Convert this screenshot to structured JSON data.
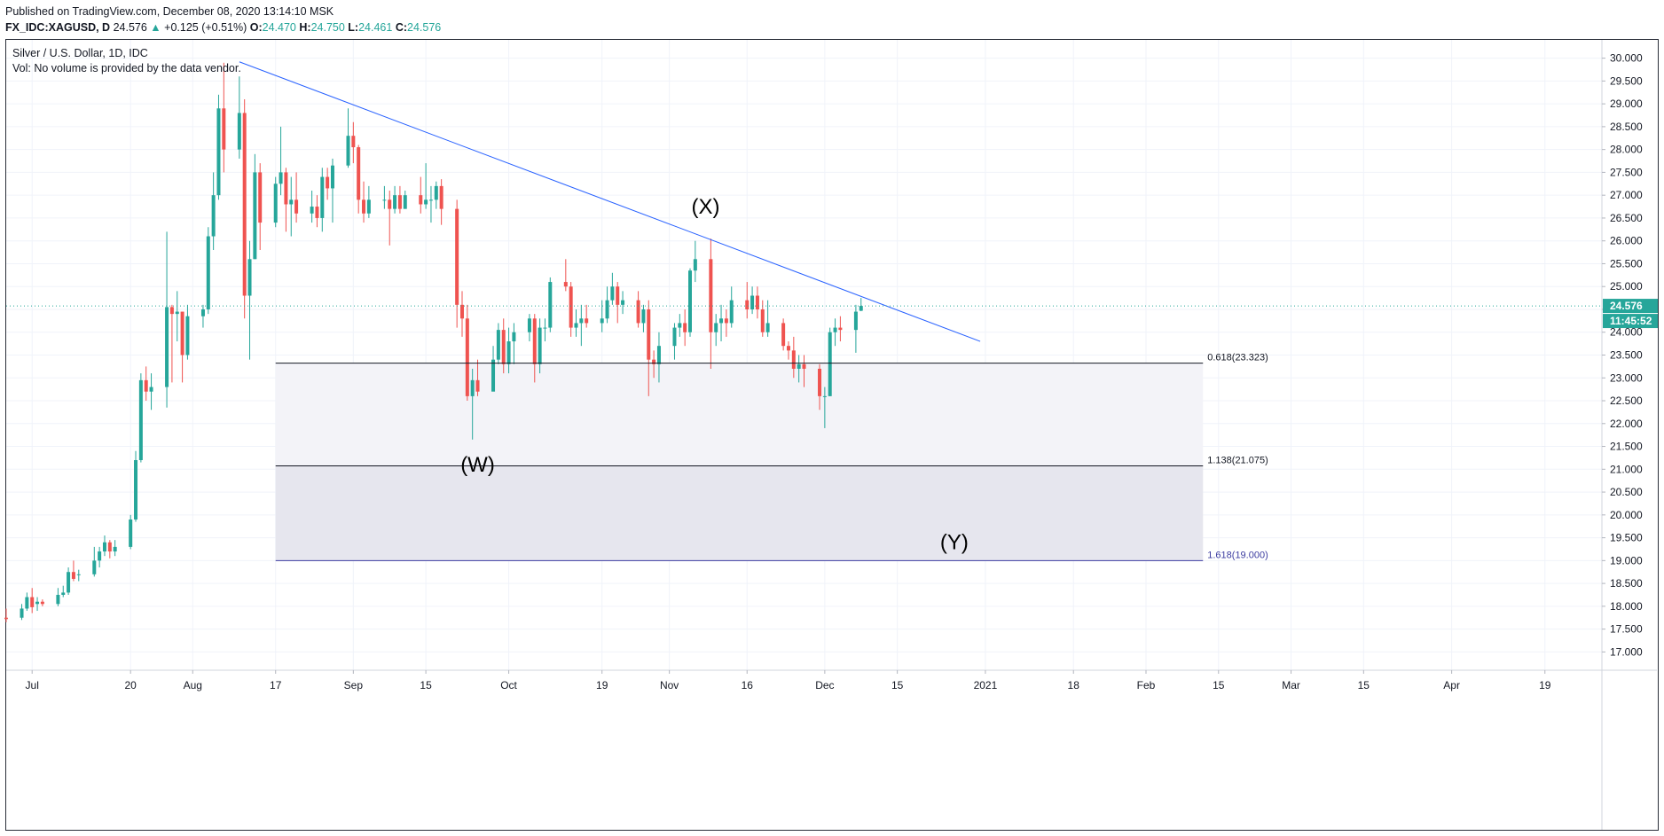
{
  "header": {
    "published": "Published on TradingView.com, December 08, 2020 13:14:10 MSK",
    "symbol": "FX_IDC:XAGUSD, D",
    "last": "24.576",
    "change": "+0.125 (+0.51%)",
    "o_label": "O:",
    "o_value": "24.470",
    "h_label": "H:",
    "h_value": "24.750",
    "l_label": "L:",
    "l_value": "24.461",
    "c_label": "C:",
    "c_value": "24.576"
  },
  "legend": {
    "title": "Silver / U.S. Dollar, 1D, IDC",
    "volume": "Vol: No volume is provided by the data vendor."
  },
  "colors": {
    "up": "#26a69a",
    "down": "#ef5350",
    "trendline": "#2962ff",
    "fib_line": "#131722",
    "fib_target": "#3c3ca0",
    "zone_light": "#f3f3f8",
    "zone_dark": "#e6e6ee",
    "price_badge": "#26a69a"
  },
  "chart_data": {
    "type": "candlestick",
    "ylim": [
      16.6,
      30.4
    ],
    "y_ticks": [
      "17.000",
      "17.500",
      "18.000",
      "18.500",
      "19.000",
      "19.500",
      "20.000",
      "20.500",
      "21.000",
      "21.500",
      "22.000",
      "22.500",
      "23.000",
      "23.500",
      "24.000",
      "24.500",
      "25.000",
      "25.500",
      "26.000",
      "26.500",
      "27.000",
      "27.500",
      "28.000",
      "28.500",
      "29.000",
      "29.500",
      "30.000"
    ],
    "x_ticks": [
      {
        "label": "Jul",
        "date": "2020-07-01"
      },
      {
        "label": "20",
        "date": "2020-07-20"
      },
      {
        "label": "Aug",
        "date": "2020-08-01"
      },
      {
        "label": "17",
        "date": "2020-08-17"
      },
      {
        "label": "Sep",
        "date": "2020-09-01"
      },
      {
        "label": "15",
        "date": "2020-09-15"
      },
      {
        "label": "Oct",
        "date": "2020-10-01"
      },
      {
        "label": "19",
        "date": "2020-10-19"
      },
      {
        "label": "Nov",
        "date": "2020-11-01"
      },
      {
        "label": "16",
        "date": "2020-11-16"
      },
      {
        "label": "Dec",
        "date": "2020-12-01"
      },
      {
        "label": "15",
        "date": "2020-12-15"
      },
      {
        "label": "2021",
        "date": "2021-01-01"
      },
      {
        "label": "18",
        "date": "2021-01-18"
      },
      {
        "label": "Feb",
        "date": "2021-02-01"
      },
      {
        "label": "15",
        "date": "2021-02-15"
      },
      {
        "label": "Mar",
        "date": "2021-03-01"
      },
      {
        "label": "15",
        "date": "2021-03-15"
      },
      {
        "label": "Apr",
        "date": "2021-04-01"
      },
      {
        "label": "19",
        "date": "2021-04-19"
      }
    ],
    "x_range": [
      "2020-06-26",
      "2021-04-30"
    ],
    "candles": [
      [
        "2020-06-26",
        17.75,
        17.72,
        17.95,
        17.65
      ],
      [
        "2020-06-29",
        17.75,
        17.95,
        18.05,
        17.7
      ],
      [
        "2020-06-30",
        17.95,
        18.2,
        18.3,
        17.9
      ],
      [
        "2020-07-01",
        18.2,
        17.98,
        18.4,
        17.85
      ],
      [
        "2020-07-02",
        18.05,
        18.1,
        18.2,
        17.9
      ],
      [
        "2020-07-03",
        18.1,
        18.05,
        18.15,
        18.0
      ],
      [
        "2020-07-06",
        18.05,
        18.25,
        18.4,
        18.0
      ],
      [
        "2020-07-07",
        18.25,
        18.3,
        18.45,
        18.2
      ],
      [
        "2020-07-08",
        18.3,
        18.75,
        18.85,
        18.25
      ],
      [
        "2020-07-09",
        18.75,
        18.6,
        19.0,
        18.55
      ],
      [
        "2020-07-10",
        18.7,
        18.7,
        18.8,
        18.55
      ],
      [
        "2020-07-13",
        18.7,
        19.0,
        19.3,
        18.65
      ],
      [
        "2020-07-14",
        19.0,
        19.2,
        19.3,
        18.85
      ],
      [
        "2020-07-15",
        19.2,
        19.4,
        19.55,
        19.1
      ],
      [
        "2020-07-16",
        19.4,
        19.2,
        19.45,
        19.05
      ],
      [
        "2020-07-17",
        19.2,
        19.3,
        19.45,
        19.1
      ],
      [
        "2020-07-20",
        19.3,
        19.9,
        20.0,
        19.25
      ],
      [
        "2020-07-21",
        19.9,
        21.2,
        21.4,
        19.85
      ],
      [
        "2020-07-22",
        21.2,
        22.95,
        23.1,
        21.15
      ],
      [
        "2020-07-23",
        22.95,
        22.7,
        23.25,
        22.5
      ],
      [
        "2020-07-24",
        22.7,
        22.8,
        23.1,
        22.3
      ],
      [
        "2020-07-27",
        22.8,
        24.55,
        26.2,
        22.35
      ],
      [
        "2020-07-28",
        24.55,
        24.4,
        24.6,
        22.9
      ],
      [
        "2020-07-29",
        24.4,
        24.45,
        24.9,
        23.8
      ],
      [
        "2020-07-30",
        24.45,
        23.5,
        24.45,
        22.9
      ],
      [
        "2020-07-31",
        23.5,
        24.35,
        24.6,
        23.4
      ],
      [
        "2020-08-03",
        24.35,
        24.5,
        24.6,
        24.1
      ],
      [
        "2020-08-04",
        24.5,
        26.1,
        26.3,
        24.4
      ],
      [
        "2020-08-05",
        26.1,
        27.0,
        27.5,
        25.8
      ],
      [
        "2020-08-06",
        27.0,
        28.9,
        29.2,
        26.9
      ],
      [
        "2020-08-07",
        28.9,
        28.0,
        29.9,
        27.5
      ],
      [
        "2020-08-10",
        28.0,
        28.8,
        29.6,
        27.8
      ],
      [
        "2020-08-11",
        28.8,
        24.8,
        29.1,
        24.3
      ],
      [
        "2020-08-12",
        24.8,
        25.6,
        26.0,
        23.4
      ],
      [
        "2020-08-13",
        25.6,
        27.5,
        27.9,
        25.6
      ],
      [
        "2020-08-14",
        27.5,
        26.4,
        27.7,
        25.8
      ],
      [
        "2020-08-17",
        26.4,
        27.25,
        27.4,
        26.3
      ],
      [
        "2020-08-18",
        27.25,
        27.5,
        28.5,
        27.0
      ],
      [
        "2020-08-19",
        27.5,
        26.8,
        27.6,
        26.2
      ],
      [
        "2020-08-20",
        26.8,
        26.9,
        27.4,
        26.1
      ],
      [
        "2020-08-21",
        26.9,
        26.6,
        27.5,
        26.4
      ],
      [
        "2020-08-24",
        26.6,
        26.75,
        27.1,
        26.4
      ],
      [
        "2020-08-25",
        26.75,
        26.5,
        27.0,
        26.3
      ],
      [
        "2020-08-26",
        26.5,
        27.4,
        27.6,
        26.2
      ],
      [
        "2020-08-27",
        27.4,
        27.15,
        27.6,
        26.9
      ],
      [
        "2020-08-28",
        27.15,
        27.65,
        27.8,
        26.4
      ],
      [
        "2020-08-31",
        27.65,
        28.3,
        28.9,
        27.6
      ],
      [
        "2020-09-01",
        28.3,
        28.05,
        28.6,
        27.7
      ],
      [
        "2020-09-02",
        28.05,
        26.9,
        28.1,
        26.6
      ],
      [
        "2020-09-03",
        26.9,
        26.6,
        27.3,
        26.4
      ],
      [
        "2020-09-04",
        26.6,
        26.9,
        27.2,
        26.5
      ],
      [
        "2020-09-07",
        26.9,
        26.9,
        27.2,
        26.7
      ],
      [
        "2020-09-08",
        26.9,
        26.7,
        27.1,
        25.9
      ],
      [
        "2020-09-09",
        26.7,
        27.0,
        27.2,
        26.6
      ],
      [
        "2020-09-10",
        27.0,
        26.7,
        27.2,
        26.6
      ],
      [
        "2020-09-11",
        26.7,
        27.0,
        27.1,
        26.7
      ],
      [
        "2020-09-14",
        27.0,
        26.8,
        27.4,
        26.6
      ],
      [
        "2020-09-15",
        26.8,
        26.9,
        27.7,
        26.7
      ],
      [
        "2020-09-16",
        26.9,
        26.9,
        27.2,
        26.4
      ],
      [
        "2020-09-17",
        26.9,
        27.2,
        27.3,
        26.7
      ],
      [
        "2020-09-18",
        27.2,
        26.7,
        27.35,
        26.35
      ],
      [
        "2020-09-21",
        26.7,
        24.6,
        26.9,
        24.1
      ],
      [
        "2020-09-22",
        24.6,
        24.3,
        24.9,
        23.9
      ],
      [
        "2020-09-23",
        24.3,
        22.6,
        24.6,
        22.5
      ],
      [
        "2020-09-24",
        22.6,
        22.95,
        23.2,
        21.65
      ],
      [
        "2020-09-25",
        22.95,
        22.7,
        23.4,
        22.6
      ],
      [
        "2020-09-28",
        22.7,
        23.4,
        23.7,
        22.8
      ],
      [
        "2020-09-29",
        23.4,
        24.05,
        24.2,
        23.3
      ],
      [
        "2020-09-30",
        24.05,
        23.3,
        24.3,
        23.1
      ],
      [
        "2020-10-01",
        23.3,
        23.8,
        24.1,
        23.1
      ],
      [
        "2020-10-02",
        23.8,
        24.0,
        24.2,
        23.3
      ],
      [
        "2020-10-05",
        24.0,
        24.3,
        24.4,
        23.8
      ],
      [
        "2020-10-06",
        24.3,
        23.3,
        24.4,
        22.9
      ],
      [
        "2020-10-07",
        23.3,
        24.1,
        24.3,
        23.1
      ],
      [
        "2020-10-08",
        24.1,
        24.1,
        24.3,
        23.8
      ],
      [
        "2020-10-09",
        24.1,
        25.1,
        25.2,
        24.0
      ],
      [
        "2020-10-12",
        25.1,
        25.0,
        25.6,
        24.9
      ],
      [
        "2020-10-13",
        25.0,
        24.1,
        25.1,
        23.9
      ],
      [
        "2020-10-14",
        24.1,
        24.2,
        24.5,
        23.9
      ],
      [
        "2020-10-15",
        24.2,
        24.3,
        24.6,
        23.7
      ],
      [
        "2020-10-16",
        24.3,
        24.2,
        24.6,
        24.1
      ],
      [
        "2020-10-19",
        24.2,
        24.3,
        24.7,
        24.0
      ],
      [
        "2020-10-20",
        24.3,
        24.7,
        25.0,
        24.2
      ],
      [
        "2020-10-21",
        24.7,
        25.0,
        25.3,
        24.6
      ],
      [
        "2020-10-22",
        25.0,
        24.6,
        25.1,
        24.2
      ],
      [
        "2020-10-23",
        24.6,
        24.7,
        24.9,
        24.4
      ],
      [
        "2020-10-26",
        24.7,
        24.2,
        24.9,
        24.1
      ],
      [
        "2020-10-27",
        24.2,
        24.5,
        24.6,
        24.0
      ],
      [
        "2020-10-28",
        24.5,
        23.4,
        24.7,
        22.6
      ],
      [
        "2020-10-29",
        23.4,
        23.3,
        23.6,
        23.0
      ],
      [
        "2020-10-30",
        23.3,
        23.7,
        24.0,
        22.9
      ],
      [
        "2020-11-02",
        23.7,
        24.1,
        24.2,
        23.4
      ],
      [
        "2020-11-03",
        24.1,
        24.2,
        24.4,
        23.9
      ],
      [
        "2020-11-04",
        24.2,
        24.0,
        24.5,
        23.7
      ],
      [
        "2020-11-05",
        24.0,
        25.35,
        25.4,
        23.9
      ],
      [
        "2020-11-06",
        25.35,
        25.6,
        26.0,
        25.1
      ],
      [
        "2020-11-09",
        25.6,
        24.0,
        26.05,
        23.2
      ],
      [
        "2020-11-10",
        24.0,
        24.2,
        24.4,
        23.7
      ],
      [
        "2020-11-11",
        24.2,
        24.3,
        24.6,
        23.8
      ],
      [
        "2020-11-12",
        24.3,
        24.2,
        24.5,
        23.9
      ],
      [
        "2020-11-13",
        24.2,
        24.7,
        25.0,
        24.1
      ],
      [
        "2020-11-16",
        24.7,
        24.5,
        25.1,
        24.3
      ],
      [
        "2020-11-17",
        24.5,
        24.8,
        25.0,
        24.4
      ],
      [
        "2020-11-18",
        24.8,
        24.5,
        25.0,
        24.3
      ],
      [
        "2020-11-19",
        24.5,
        24.0,
        24.7,
        23.9
      ],
      [
        "2020-11-20",
        24.0,
        24.2,
        24.7,
        23.9
      ],
      [
        "2020-11-23",
        24.2,
        23.7,
        24.3,
        23.6
      ],
      [
        "2020-11-24",
        23.7,
        23.6,
        23.8,
        23.4
      ],
      [
        "2020-11-25",
        23.6,
        23.2,
        23.9,
        23.0
      ],
      [
        "2020-11-26",
        23.2,
        23.3,
        23.5,
        22.9
      ],
      [
        "2020-11-27",
        23.3,
        23.2,
        23.5,
        22.8
      ],
      [
        "2020-11-30",
        23.2,
        22.6,
        23.3,
        22.3
      ],
      [
        "2020-12-01",
        22.6,
        22.6,
        22.8,
        21.9
      ],
      [
        "2020-12-02",
        22.6,
        24.0,
        24.1,
        22.6
      ],
      [
        "2020-12-03",
        24.0,
        24.1,
        24.3,
        23.7
      ],
      [
        "2020-12-04",
        24.1,
        24.05,
        24.35,
        23.8
      ],
      [
        "2020-12-07",
        24.05,
        24.45,
        24.6,
        23.55
      ],
      [
        "2020-12-08",
        24.47,
        24.576,
        24.75,
        24.461
      ]
    ]
  },
  "annotations": {
    "trendline": {
      "start": [
        "2020-08-10",
        29.92
      ],
      "end": [
        "2020-12-31",
        23.8
      ]
    },
    "wave_labels": [
      {
        "text": "(X)",
        "date": "2020-11-08",
        "price": 26.6
      },
      {
        "text": "(W)",
        "date": "2020-09-25",
        "price": 20.95
      },
      {
        "text": "(Y)",
        "date": "2020-12-26",
        "price": 19.25
      }
    ],
    "fib_levels": [
      {
        "label": "0.618(23.323)",
        "price": 23.323
      },
      {
        "label": "1.138(21.075)",
        "price": 21.075
      },
      {
        "label": "1.618(19.000)",
        "price": 19.0
      }
    ],
    "fib_range": [
      "2020-08-17",
      "2021-02-12"
    ],
    "last_price_label": "24.576",
    "countdown_label": "11:45:52"
  }
}
